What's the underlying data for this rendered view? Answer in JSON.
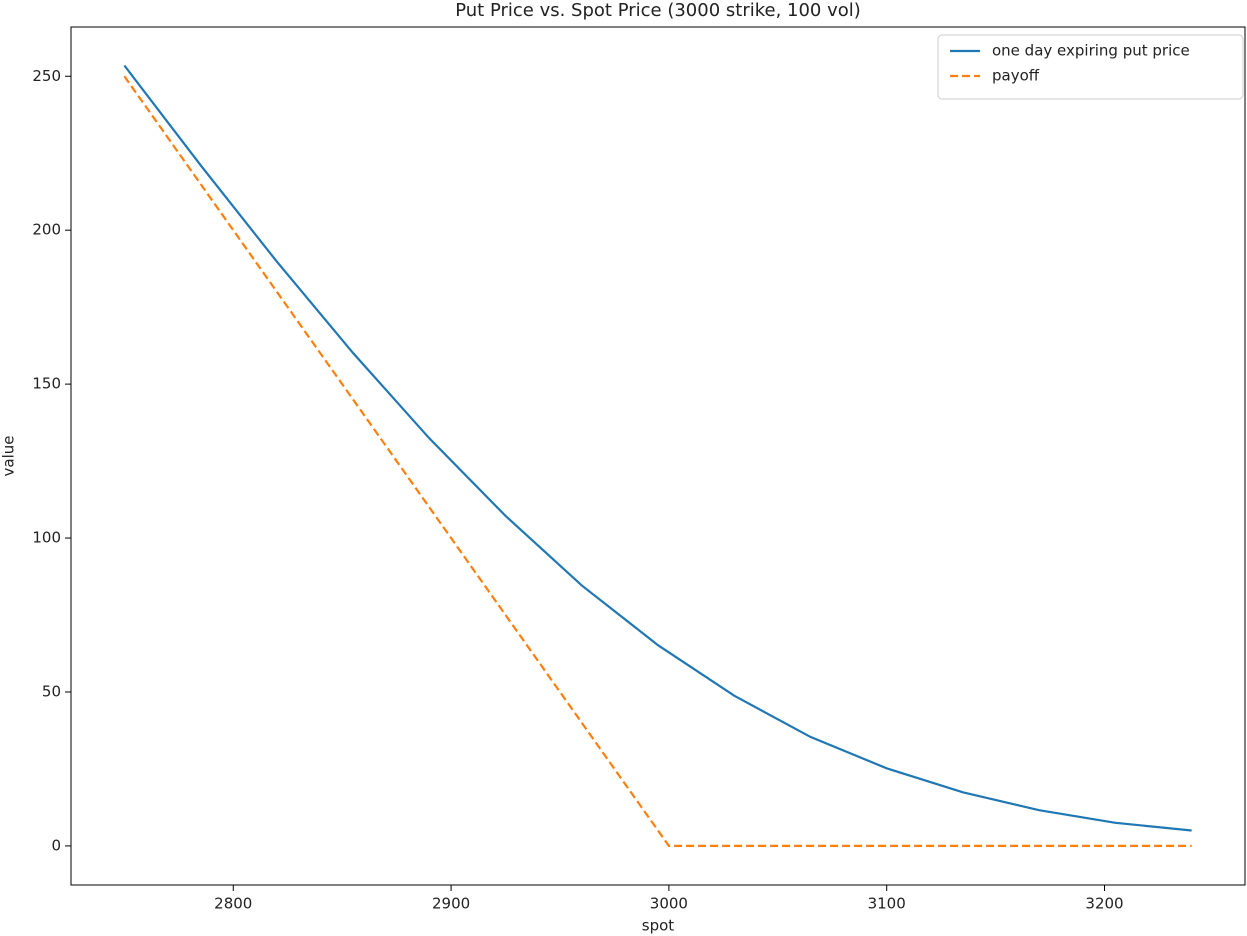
{
  "chart_data": {
    "type": "line",
    "title": "Put Price vs. Spot Price (3000 strike, 100 vol)",
    "x_label": "spot",
    "y_label": "value",
    "series": [
      {
        "name": "one day expiring put price",
        "color": "#1f77b4",
        "style": "solid",
        "x": [
          2750,
          2785,
          2820,
          2855,
          2890,
          2925,
          2960,
          2995,
          3030,
          3065,
          3100,
          3135,
          3170,
          3205,
          3240
        ],
        "values": [
          253.5,
          221.1,
          189.8,
          160.1,
          132.4,
          107.2,
          84.6,
          65.2,
          48.8,
          35.4,
          25.2,
          17.4,
          11.6,
          7.5,
          5.0
        ]
      },
      {
        "name": "payoff",
        "color": "#ff7f0e",
        "style": "dashed",
        "x": [
          2750,
          3000,
          3240
        ],
        "values": [
          250,
          0,
          0
        ]
      }
    ],
    "xlim": [
      2725.5,
      3264.5
    ],
    "xticks": [
      2800,
      2900,
      3000,
      3100,
      3200
    ],
    "ylim": [
      -12.7,
      266
    ],
    "yticks": [
      0,
      50,
      100,
      150,
      200,
      250
    ],
    "grid": false,
    "legend": "upper right"
  }
}
